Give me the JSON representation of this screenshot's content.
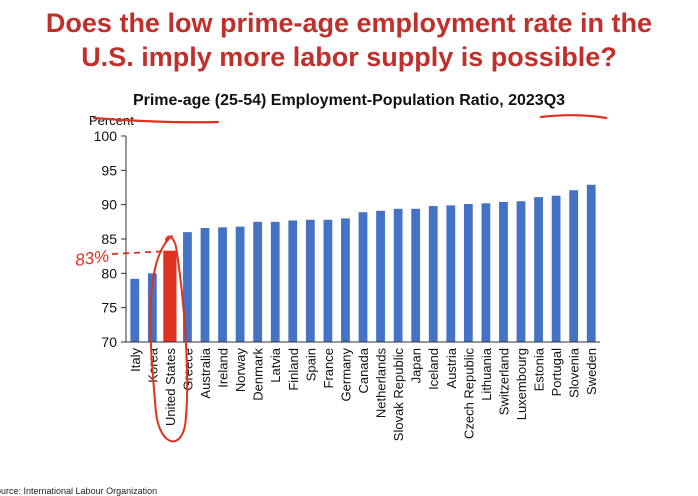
{
  "slide": {
    "title_line1": "Does the low prime-age employment rate in the",
    "title_line2": "U.S. imply more labor supply is possible?"
  },
  "annotation": {
    "label": "83%",
    "color": "#e0301e"
  },
  "source_text": "ource: International Labour Organization",
  "chart_data": {
    "type": "bar",
    "title": "Prime-age  (25-54)  Employment-Population  Ratio,  2023Q3",
    "ylabel": "Percent",
    "ylim": [
      70,
      100
    ],
    "yticks": [
      70,
      75,
      80,
      85,
      90,
      95,
      100
    ],
    "bar_color": "#4472c4",
    "highlight_color": "#e0301e",
    "highlight_category": "United States",
    "categories": [
      "Italy",
      "Korea",
      "United States",
      "Greece",
      "Australia",
      "Ireland",
      "Norway",
      "Denmark",
      "Latvia",
      "Finland",
      "Spain",
      "France",
      "Germany",
      "Canada",
      "Netherlands",
      "Slovak Republic",
      "Japan",
      "Iceland",
      "Austria",
      "Czech Republic",
      "Lithuania",
      "Switzerland",
      "Luxembourg",
      "Estonia",
      "Portugal",
      "Slovenia",
      "Sweden"
    ],
    "values": [
      79.2,
      80.0,
      83.3,
      86.0,
      86.6,
      86.7,
      86.8,
      87.5,
      87.5,
      87.7,
      87.8,
      87.8,
      88.0,
      88.9,
      89.1,
      89.4,
      89.4,
      89.8,
      89.9,
      90.1,
      90.2,
      90.4,
      90.5,
      91.1,
      91.3,
      92.1,
      92.9
    ]
  }
}
